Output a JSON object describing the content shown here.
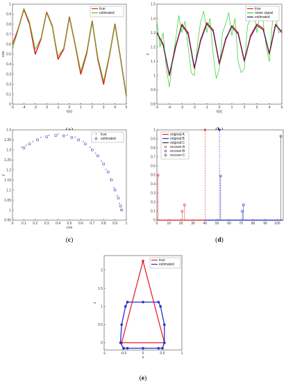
{
  "chart_data": [
    {
      "id": "a",
      "type": "line",
      "caption_letter": "a",
      "xlabel": "t(s)",
      "ylabel": "cos",
      "xlim": [
        -5,
        5
      ],
      "ylim": [
        0,
        1
      ],
      "xticks": [
        "-5",
        "-4",
        "-3",
        "-2",
        "-1",
        "0",
        "1",
        "2",
        "3",
        "4",
        "5"
      ],
      "yticks": [
        "0",
        "0.1",
        "0.2",
        "0.3",
        "0.4",
        "0.5",
        "0.6",
        "0.7",
        "0.8",
        "0.9",
        "1"
      ],
      "legend": "top-right",
      "series": [
        {
          "name": "true",
          "color": "#e8202a",
          "x": [
            -5,
            -4.5,
            -4,
            -3.5,
            -3,
            -2.5,
            -2,
            -1.5,
            -1,
            -0.5,
            0,
            0.5,
            1,
            1.5,
            2,
            2.5,
            3,
            3.5,
            4,
            4.5,
            5
          ],
          "y": [
            0.6,
            0.75,
            0.95,
            0.8,
            0.5,
            0.65,
            0.92,
            0.78,
            0.45,
            0.55,
            0.87,
            0.6,
            0.3,
            0.5,
            0.83,
            0.45,
            0.2,
            0.48,
            0.8,
            0.45,
            0.08
          ]
        },
        {
          "name": "estimated",
          "color": "#50c820",
          "x": [
            -5,
            -4.5,
            -4,
            -3.5,
            -3,
            -2.5,
            -2,
            -1.5,
            -1,
            -0.5,
            0,
            0.5,
            1,
            1.5,
            2,
            2.5,
            3,
            3.5,
            4,
            4.5,
            5
          ],
          "y": [
            0.55,
            0.74,
            0.96,
            0.82,
            0.55,
            0.66,
            0.91,
            0.77,
            0.48,
            0.56,
            0.86,
            0.61,
            0.33,
            0.52,
            0.82,
            0.47,
            0.23,
            0.49,
            0.79,
            0.44,
            0.08
          ]
        }
      ]
    },
    {
      "id": "b",
      "type": "line",
      "caption_letter": "b",
      "xlabel": "t(s)",
      "ylabel": "y",
      "xlim": [
        -5,
        5
      ],
      "ylim": [
        0.8,
        1.5
      ],
      "xticks": [
        "-5",
        "-4",
        "-3",
        "-2",
        "-1",
        "0",
        "1",
        "2",
        "3",
        "4",
        "5"
      ],
      "yticks": [
        "0.8",
        "0.9",
        "1",
        "1.1",
        "1.2",
        "1.3",
        "1.4",
        "1.5"
      ],
      "legend": "top-right",
      "series": [
        {
          "name": "true",
          "color": "#e8202a",
          "x": [
            -5,
            -4.5,
            -4,
            -3.5,
            -3,
            -2.5,
            -2,
            -1.5,
            -1,
            -0.5,
            0,
            0.5,
            1,
            1.5,
            2,
            2.5,
            3,
            3.5,
            4,
            4.5,
            5
          ],
          "y": [
            1.3,
            1.22,
            1.0,
            1.2,
            1.36,
            1.3,
            1.05,
            1.25,
            1.37,
            1.32,
            1.08,
            1.25,
            1.35,
            1.3,
            1.1,
            1.28,
            1.36,
            1.33,
            1.15,
            1.36,
            1.3
          ]
        },
        {
          "name": "noise signal",
          "color": "#22d31e",
          "x": [
            -5,
            -4.75,
            -4.5,
            -4.25,
            -4,
            -3.75,
            -3.5,
            -3.25,
            -3,
            -2.75,
            -2.5,
            -2.25,
            -2,
            -1.75,
            -1.5,
            -1.25,
            -1,
            -0.75,
            -0.5,
            -0.25,
            0,
            0.25,
            0.5,
            0.75,
            1,
            1.25,
            1.5,
            1.75,
            2,
            2.25,
            2.5,
            2.75,
            3,
            3.25,
            3.5,
            3.75,
            4,
            4.25,
            4.5,
            4.75,
            5
          ],
          "y": [
            1.38,
            1.2,
            1.3,
            1.05,
            0.92,
            1.1,
            1.25,
            1.42,
            1.3,
            1.38,
            1.2,
            1.02,
            1.0,
            1.22,
            1.38,
            1.45,
            1.3,
            1.4,
            1.15,
            0.98,
            1.05,
            1.3,
            1.36,
            1.44,
            1.28,
            1.4,
            1.1,
            1.02,
            1.05,
            1.35,
            1.4,
            1.47,
            1.3,
            1.42,
            1.38,
            1.2,
            1.1,
            1.38,
            1.42,
            1.3,
            1.32
          ]
        },
        {
          "name": "estimated",
          "color": "#1a2a6c",
          "x": [
            -5,
            -4.5,
            -4,
            -3.5,
            -3,
            -2.5,
            -2,
            -1.5,
            -1,
            -0.5,
            0,
            0.5,
            1,
            1.5,
            2,
            2.5,
            3,
            3.5,
            4,
            4.5,
            5
          ],
          "y": [
            1.3,
            1.21,
            1.01,
            1.21,
            1.35,
            1.29,
            1.06,
            1.24,
            1.36,
            1.31,
            1.09,
            1.26,
            1.34,
            1.29,
            1.11,
            1.27,
            1.35,
            1.32,
            1.16,
            1.35,
            1.31
          ]
        }
      ]
    },
    {
      "id": "c",
      "type": "scatter",
      "caption_letter": "c",
      "xlabel": "cos",
      "ylabel": "y",
      "xlim": [
        0,
        1
      ],
      "ylim": [
        0.95,
        1.4
      ],
      "xticks": [
        "0",
        "0.1",
        "0.2",
        "0.3",
        "0.4",
        "0.5",
        "0.6",
        "0.7",
        "0.8",
        "0.9",
        "1"
      ],
      "yticks": [
        "0.95",
        "1",
        "1.05",
        "1.1",
        "1.15",
        "1.2",
        "1.25",
        "1.3",
        "1.35",
        "1.4"
      ],
      "legend": "top-right",
      "series": [
        {
          "name": "true",
          "color": "#e8202a",
          "marker": "star",
          "x": [
            0.08,
            0.12,
            0.18,
            0.25,
            0.32,
            0.4,
            0.48,
            0.55,
            0.62,
            0.68,
            0.73,
            0.78,
            0.82,
            0.86,
            0.89,
            0.92,
            0.94,
            0.95
          ],
          "y": [
            1.31,
            1.32,
            1.34,
            1.36,
            1.37,
            1.375,
            1.37,
            1.36,
            1.34,
            1.31,
            1.28,
            1.24,
            1.2,
            1.15,
            1.11,
            1.07,
            1.03,
            1.0
          ]
        },
        {
          "name": "estimated",
          "color": "#2430c8",
          "marker": "circle",
          "x": [
            0.1,
            0.15,
            0.22,
            0.3,
            0.38,
            0.45,
            0.52,
            0.58,
            0.64,
            0.7,
            0.75,
            0.8,
            0.84,
            0.87,
            0.9,
            0.93,
            0.95,
            0.96
          ],
          "y": [
            1.31,
            1.33,
            1.35,
            1.365,
            1.372,
            1.37,
            1.362,
            1.35,
            1.33,
            1.3,
            1.27,
            1.23,
            1.19,
            1.15,
            1.1,
            1.06,
            1.02,
            1.0
          ]
        }
      ]
    },
    {
      "id": "d",
      "type": "stem",
      "caption_letter": "d",
      "xlim": [
        0,
        105
      ],
      "ylim": [
        0,
        1
      ],
      "xticks": [
        "0",
        "10",
        "20",
        "30",
        "40",
        "50",
        "60",
        "70",
        "80",
        "90",
        "100"
      ],
      "yticks": [
        "0",
        "0.1",
        "0.2",
        "0.3",
        "0.4",
        "0.5",
        "0.6",
        "0.7",
        "0.8",
        "0.9",
        "1"
      ],
      "legend": "top-left",
      "series": [
        {
          "name": "original:A",
          "color": "#e8202a",
          "style": "dashed-star",
          "x": [
            40
          ],
          "y": [
            1.0
          ]
        },
        {
          "name": "original:B",
          "color": "#2430c8",
          "style": "dashed-star",
          "x": [
            52
          ],
          "y": [
            1.0
          ]
        },
        {
          "name": "original:C",
          "color": "#333333",
          "style": "dashed-star",
          "x": [],
          "y": []
        },
        {
          "name": "recover:A",
          "color": "#e8202a",
          "style": "circle",
          "x": [
            1,
            21,
            23
          ],
          "y": [
            0.5,
            0.1,
            0.17
          ]
        },
        {
          "name": "recover:B",
          "color": "#2430c8",
          "style": "circle",
          "x": [
            53,
            71,
            72
          ],
          "y": [
            0.49,
            0.1,
            0.17
          ]
        },
        {
          "name": "recover:C",
          "color": "#333333",
          "style": "circle",
          "x": [
            103
          ],
          "y": [
            0.93
          ]
        }
      ]
    },
    {
      "id": "e",
      "type": "line",
      "caption_letter": "e",
      "xlabel": "x",
      "ylabel": "z",
      "xlim": [
        -1,
        1
      ],
      "ylim": [
        -0.2,
        2.4
      ],
      "xticks": [
        "-1",
        "-0.5",
        "0",
        "0.5",
        "1"
      ],
      "yticks": [
        "0",
        "0.5",
        "1",
        "1.5",
        "2"
      ],
      "legend": "top-right",
      "series": [
        {
          "name": "true",
          "color": "#e8202a",
          "x": [
            -0.55,
            0,
            0.55,
            -0.55,
            0,
            0.55
          ],
          "y": [
            0,
            2.25,
            0,
            0,
            0,
            0
          ],
          "path": [
            [
              -0.55,
              0
            ],
            [
              0,
              2.25
            ],
            [
              0.55,
              0
            ],
            [
              -0.55,
              0
            ]
          ]
        },
        {
          "name": "estimated",
          "color": "#2430c8",
          "path": [
            [
              -0.5,
              -0.15
            ],
            [
              -0.4,
              -0.15
            ],
            [
              0,
              -0.15
            ],
            [
              0.4,
              -0.15
            ],
            [
              0.5,
              -0.15
            ],
            [
              0.55,
              0
            ],
            [
              0.55,
              0.5
            ],
            [
              0.45,
              1.0
            ],
            [
              0.4,
              1.12
            ],
            [
              0,
              1.12
            ],
            [
              -0.4,
              1.12
            ],
            [
              -0.45,
              1.0
            ],
            [
              -0.55,
              0.5
            ],
            [
              -0.58,
              0
            ],
            [
              -0.5,
              -0.15
            ]
          ]
        }
      ]
    }
  ]
}
